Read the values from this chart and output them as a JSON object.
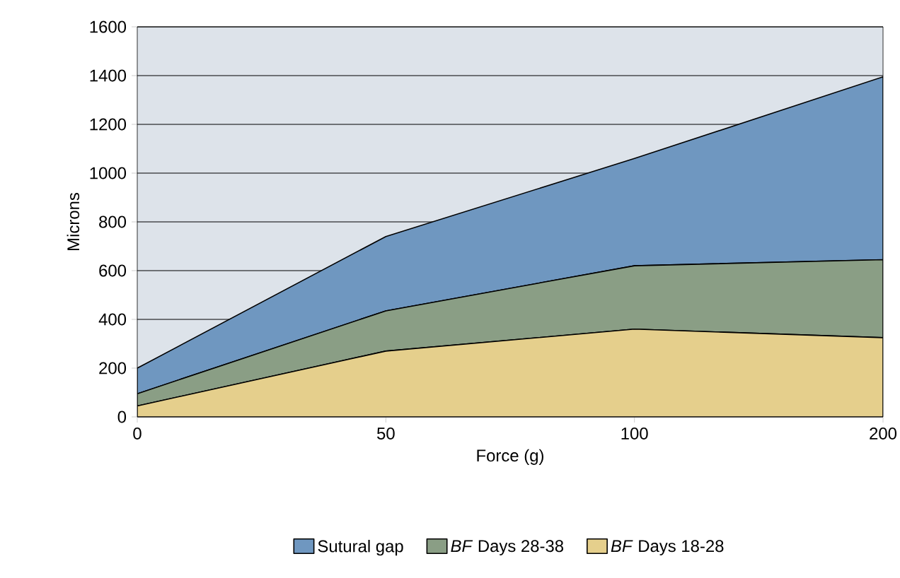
{
  "chart_data": {
    "type": "area",
    "stacked": true,
    "xlabel": "Force (g)",
    "ylabel": "Microns",
    "categories": [
      "0",
      "50",
      "100",
      "200"
    ],
    "series": [
      {
        "name": "*BF* Days 18-28",
        "color": "#e5cf8c",
        "values": [
          45,
          270,
          360,
          325
        ]
      },
      {
        "name": "*BF* Days 28-38",
        "color": "#8a9e85",
        "values": [
          50,
          165,
          260,
          320
        ]
      },
      {
        "name": "Sutural gap",
        "color": "#6f97c0",
        "values": [
          105,
          305,
          440,
          750
        ]
      }
    ],
    "ylim": [
      0,
      1600
    ],
    "yticks": [
      0,
      200,
      400,
      600,
      800,
      1000,
      1200,
      1400,
      1600
    ],
    "grid": "y",
    "legend": "bottom"
  }
}
